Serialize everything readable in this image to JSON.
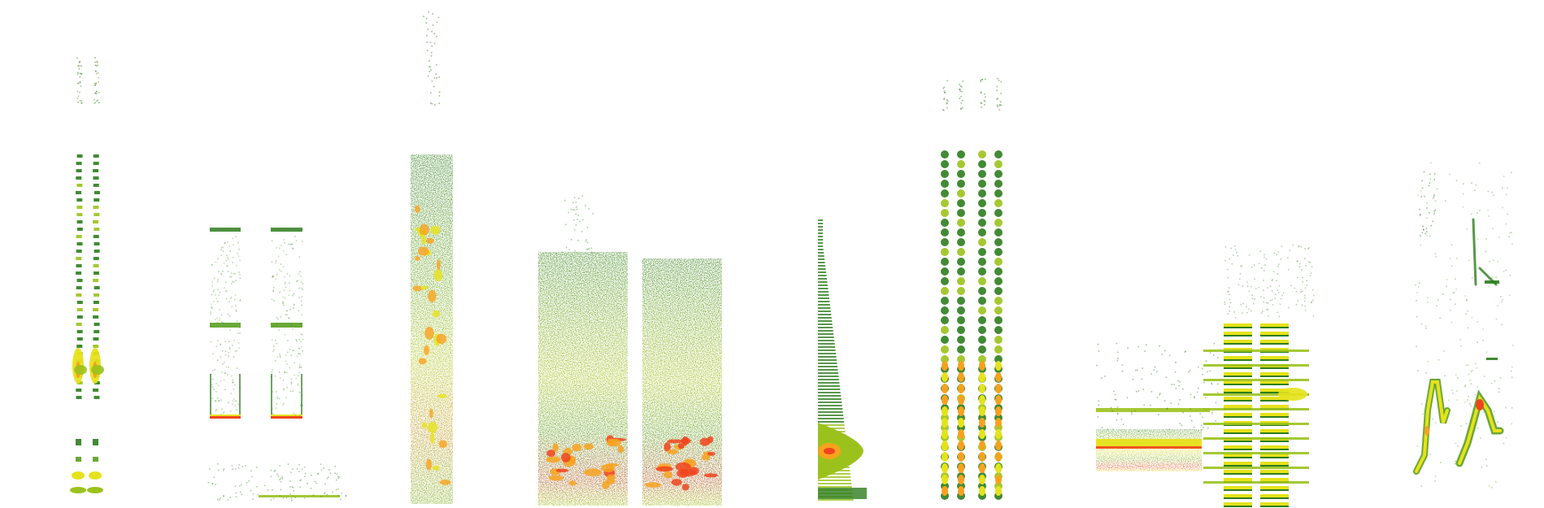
{
  "figure": {
    "kind": "spectrogram-gallery",
    "background": "#ffffff",
    "colormap": [
      "#2e7d1e",
      "#5a9e22",
      "#9bc21c",
      "#e6e21a",
      "#f7a21e",
      "#f0441c"
    ],
    "segments": [
      {
        "id": "seg-1",
        "style": "double-narrow-trill"
      },
      {
        "id": "seg-2",
        "style": "two-tonal-notes"
      },
      {
        "id": "seg-3",
        "style": "tall-broadband-column"
      },
      {
        "id": "seg-4",
        "style": "two-dense-blocks"
      },
      {
        "id": "seg-5",
        "style": "rising-tapered-cone"
      },
      {
        "id": "seg-6",
        "style": "four-narrow-trills"
      },
      {
        "id": "seg-7",
        "style": "harmonic-stack-with-ladders"
      },
      {
        "id": "seg-8",
        "style": "frequency-modulated-sweeps"
      }
    ]
  }
}
